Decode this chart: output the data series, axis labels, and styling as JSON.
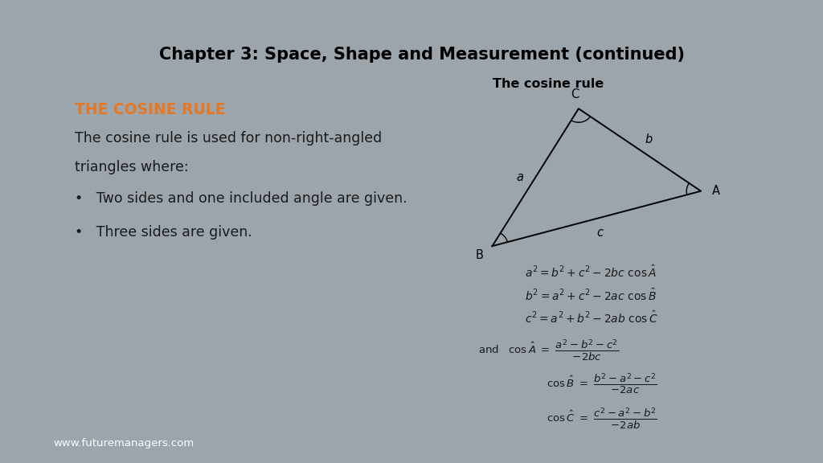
{
  "title": "Chapter 3: Space, Shape and Measurement (continued)",
  "title_fontsize": 15,
  "title_color": "#000000",
  "bg_color": "#9ca4ac",
  "slide_bg": "#ffffff",
  "heading_color": "#e87722",
  "heading_text": "THE COSINE RULE",
  "heading_fontsize": 13.5,
  "body_color": "#1a1a1a",
  "body_fontsize": 12.5,
  "footer_text": "www.futuremanagers.com",
  "footer_color": "#ffffff",
  "cosine_rule_title": "The cosine rule"
}
